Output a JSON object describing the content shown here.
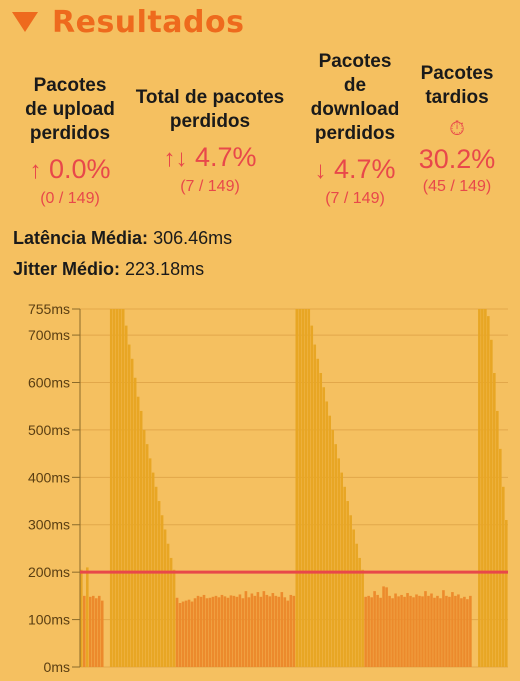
{
  "header": {
    "title": "Resultados"
  },
  "stats": {
    "upload": {
      "label_lines": [
        "Pacotes",
        "de upload",
        "perdidos"
      ],
      "arrow": "↑",
      "value": "0.0%",
      "detail": "(0 / 149)"
    },
    "total": {
      "label_lines": [
        "Total de pacotes",
        "perdidos"
      ],
      "arrow": "↑↓",
      "value": "4.7%",
      "detail": "(7 / 149)"
    },
    "download": {
      "label_lines": [
        "Pacotes",
        "de",
        "download",
        "perdidos"
      ],
      "arrow": "↓",
      "value": "4.7%",
      "detail": "(7 / 149)"
    },
    "late": {
      "label_lines": [
        "Pacotes",
        "tardios"
      ],
      "icon": "stopwatch-icon",
      "icon_glyph": "⏱",
      "value": "30.2%",
      "detail": "(45 / 149)"
    }
  },
  "metrics": {
    "latency_label": "Latência Média:",
    "latency_value": "306.46ms",
    "jitter_label": "Jitter Médio:",
    "jitter_value": "223.18ms"
  },
  "colors": {
    "background": "#f5c060",
    "accent": "#ee6a1d",
    "alert": "#e8484a",
    "bar_late": "#e8a624",
    "bar_normal": "#ec8a2c",
    "threshold_line": "#e8484a"
  },
  "chart_data": {
    "type": "bar",
    "ylim": [
      0,
      755
    ],
    "yticks": [
      "0ms",
      "100ms",
      "200ms",
      "300ms",
      "400ms",
      "500ms",
      "600ms",
      "700ms",
      "755ms"
    ],
    "threshold": 200,
    "values": [
      205,
      150,
      210,
      148,
      150,
      145,
      150,
      140,
      0,
      0,
      755,
      755,
      755,
      755,
      755,
      720,
      680,
      650,
      610,
      570,
      540,
      500,
      470,
      440,
      410,
      380,
      350,
      320,
      290,
      260,
      230,
      205,
      146,
      135,
      138,
      140,
      142,
      138,
      145,
      150,
      148,
      152,
      145,
      146,
      148,
      150,
      147,
      152,
      149,
      146,
      151,
      150,
      148,
      153,
      145,
      160,
      147,
      155,
      150,
      158,
      148,
      160,
      152,
      149,
      156,
      150,
      148,
      158,
      147,
      140,
      152,
      150,
      755,
      755,
      755,
      755,
      755,
      720,
      680,
      650,
      620,
      590,
      560,
      530,
      500,
      470,
      440,
      410,
      380,
      350,
      320,
      290,
      260,
      230,
      205,
      148,
      150,
      147,
      160,
      152,
      146,
      170,
      168,
      150,
      145,
      155,
      149,
      152,
      148,
      156,
      150,
      147,
      153,
      150,
      149,
      160,
      150,
      155,
      146,
      150,
      145,
      162,
      150,
      148,
      158,
      150,
      153,
      145,
      148,
      143,
      150,
      0,
      0,
      755,
      755,
      755,
      740,
      690,
      620,
      540,
      460,
      380,
      310
    ]
  }
}
